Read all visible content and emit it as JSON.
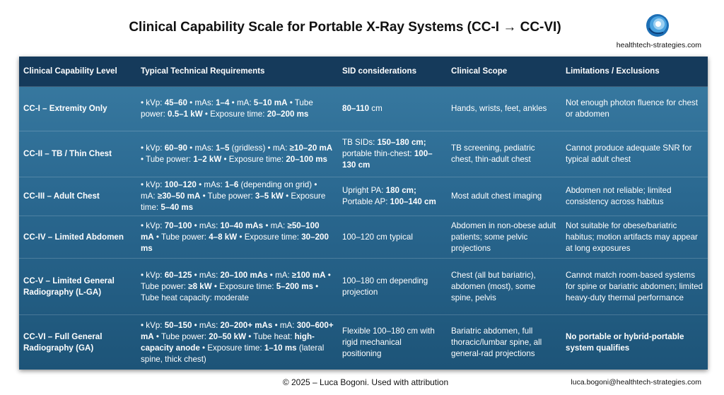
{
  "header": {
    "title": "Clinical Capability Scale for Portable X-Ray Systems (CC-I → CC-VI)",
    "site": "healthtech-strategies.com"
  },
  "table": {
    "columns": [
      "Clinical Capability Level",
      "Typical Technical Requirements",
      "SID considerations",
      "Clinical Scope",
      "Limitations / Exclusions"
    ],
    "rows": [
      [
        [
          {
            "bold": "CC-I – Extremity Only"
          }
        ],
        [
          "• kVp: ",
          {
            "bold": "45–60"
          },
          " • mAs: ",
          {
            "bold": "1–4"
          },
          " • mA: ",
          {
            "bold": "5–10 mA"
          },
          " • Tube power: ",
          {
            "bold": "0.5–1 kW"
          },
          " • Exposure time: ",
          {
            "bold": "20–200 ms"
          }
        ],
        [
          {
            "bold": "80–110"
          },
          " cm"
        ],
        [
          "Hands, wrists, feet, ankles"
        ],
        [
          "Not enough photon fluence for chest or abdomen"
        ]
      ],
      [
        [
          {
            "bold": "CC-II – TB / Thin Chest"
          }
        ],
        [
          "• kVp: ",
          {
            "bold": "60–90"
          },
          " • mAs: ",
          {
            "bold": "1–5"
          },
          " (gridless) • mA: ",
          {
            "bold": "≥10–20 mA"
          },
          " • Tube power: ",
          {
            "bold": "1–2 kW"
          },
          " • Exposure time: ",
          {
            "bold": "20–100 ms"
          }
        ],
        [
          "TB SIDs: ",
          {
            "bold": "150–180 cm;"
          },
          " portable thin-chest: ",
          {
            "bold": "100–130 cm"
          }
        ],
        [
          "TB screening, pediatric chest, thin-adult chest"
        ],
        [
          "Cannot produce adequate SNR for typical adult chest"
        ]
      ],
      [
        [
          {
            "bold": "CC-III – Adult Chest"
          }
        ],
        [
          "• kVp: ",
          {
            "bold": "100–120"
          },
          " • mAs: ",
          {
            "bold": "1–6"
          },
          " (depending on grid) • mA: ",
          {
            "bold": "≥30–50 mA"
          },
          " • Tube power: ",
          {
            "bold": "3–5 kW"
          },
          " • Exposure time: ",
          {
            "bold": "5–40 ms"
          }
        ],
        [
          "Upright PA: ",
          {
            "bold": "180 cm;"
          },
          " Portable AP: ",
          {
            "bold": "100–140 cm"
          }
        ],
        [
          "Most adult chest imaging"
        ],
        [
          "Abdomen not reliable; limited consistency across habitus"
        ]
      ],
      [
        [
          {
            "bold": "CC-IV – Limited Abdomen"
          }
        ],
        [
          "• kVp: ",
          {
            "bold": "70–100"
          },
          " • mAs: ",
          {
            "bold": "10–40 mAs"
          },
          " • mA: ",
          {
            "bold": "≥50–100 mA"
          },
          " • Tube power: ",
          {
            "bold": "4–8 kW"
          },
          " • Exposure time: ",
          {
            "bold": "30–200 ms"
          }
        ],
        [
          "100–120 cm typical"
        ],
        [
          "Abdomen in non-obese adult patients; some pelvic projections"
        ],
        [
          "Not suitable for obese/bariatric habitus; motion artifacts may appear at long exposures"
        ]
      ],
      [
        [
          {
            "bold": "CC-V – Limited General Radiography (L-GA)"
          }
        ],
        [
          "• kVp: ",
          {
            "bold": "60–125"
          },
          " • mAs: ",
          {
            "bold": "20–100 mAs"
          },
          " • mA: ",
          {
            "bold": "≥100 mA"
          },
          " • Tube power: ",
          {
            "bold": "≥8 kW"
          },
          " • Exposure time: ",
          {
            "bold": "5–200 ms"
          },
          " • Tube heat capacity: moderate"
        ],
        [
          "100–180 cm depending projection"
        ],
        [
          "Chest (all but bariatric), abdomen (most), some spine, pelvis"
        ],
        [
          "Cannot match room-based systems for spine or bariatric abdomen; limited heavy-duty thermal performance"
        ]
      ],
      [
        [
          {
            "bold": "CC-VI – Full General Radiography (GA)"
          }
        ],
        [
          "• kVp: ",
          {
            "bold": "50–150"
          },
          " • mAs: ",
          {
            "bold": "20–200+ mAs"
          },
          " • mA: ",
          {
            "bold": "300–600+ mA"
          },
          " • Tube power: ",
          {
            "bold": "20–50 kW"
          },
          " • Tube heat: ",
          {
            "bold": "high-capacity anode"
          },
          " • Exposure time: ",
          {
            "bold": "1–10 ms"
          },
          " (lateral spine, thick chest)"
        ],
        [
          "Flexible 100–180 cm with rigid mechanical positioning"
        ],
        [
          "Bariatric abdomen, full thoracic/lumbar spine, all general-rad projections"
        ],
        [
          {
            "bold": "No portable or hybrid-portable system qualifies"
          }
        ]
      ]
    ]
  },
  "footer": {
    "credit": "© 2025 – Luca Bogoni. Used with attribution",
    "email": "luca.bogoni@healthtech-strategies.com"
  }
}
